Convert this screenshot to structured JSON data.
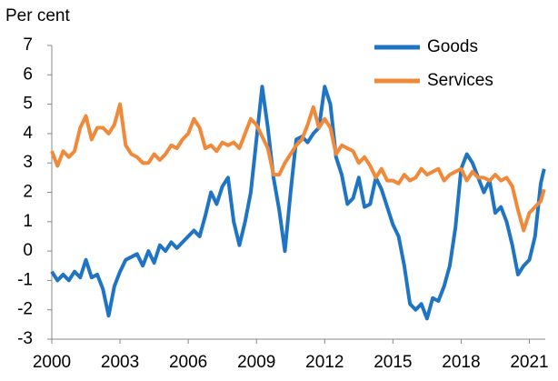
{
  "chart_data": {
    "type": "line",
    "y_label": "Per cent",
    "x": [
      2000.0,
      2000.25,
      2000.5,
      2000.75,
      2001.0,
      2001.25,
      2001.5,
      2001.75,
      2002.0,
      2002.25,
      2002.5,
      2002.75,
      2003.0,
      2003.25,
      2003.5,
      2003.75,
      2004.0,
      2004.25,
      2004.5,
      2004.75,
      2005.0,
      2005.25,
      2005.5,
      2005.75,
      2006.0,
      2006.25,
      2006.5,
      2006.75,
      2007.0,
      2007.25,
      2007.5,
      2007.75,
      2008.0,
      2008.25,
      2008.5,
      2008.75,
      2009.0,
      2009.25,
      2009.5,
      2009.75,
      2010.0,
      2010.25,
      2010.5,
      2010.75,
      2011.0,
      2011.25,
      2011.5,
      2011.75,
      2012.0,
      2012.25,
      2012.5,
      2012.75,
      2013.0,
      2013.25,
      2013.5,
      2013.75,
      2014.0,
      2014.25,
      2014.5,
      2014.75,
      2015.0,
      2015.25,
      2015.5,
      2015.75,
      2016.0,
      2016.25,
      2016.5,
      2016.75,
      2017.0,
      2017.25,
      2017.5,
      2017.75,
      2018.0,
      2018.25,
      2018.5,
      2018.75,
      2019.0,
      2019.25,
      2019.5,
      2019.75,
      2020.0,
      2020.25,
      2020.5,
      2020.75,
      2021.0,
      2021.25,
      2021.5,
      2021.65
    ],
    "series": [
      {
        "name": "Goods",
        "color": "#1f74c4",
        "values": [
          -0.7,
          -1.0,
          -0.8,
          -1.0,
          -0.7,
          -0.9,
          -0.3,
          -0.9,
          -0.8,
          -1.3,
          -2.2,
          -1.2,
          -0.7,
          -0.3,
          -0.2,
          -0.1,
          -0.5,
          0.0,
          -0.4,
          0.2,
          0.0,
          0.3,
          0.1,
          0.3,
          0.5,
          0.7,
          0.5,
          1.2,
          2.0,
          1.6,
          2.2,
          2.5,
          1.0,
          0.2,
          1.0,
          2.0,
          3.8,
          5.6,
          4.2,
          2.5,
          1.4,
          0.0,
          2.0,
          3.8,
          3.9,
          3.7,
          4.0,
          4.2,
          5.6,
          5.0,
          3.2,
          2.6,
          1.6,
          1.8,
          2.5,
          1.5,
          1.6,
          2.5,
          2.1,
          1.5,
          0.9,
          0.5,
          -0.5,
          -1.8,
          -2.0,
          -1.8,
          -2.3,
          -1.6,
          -1.7,
          -1.2,
          -0.5,
          0.8,
          2.8,
          3.3,
          3.0,
          2.5,
          2.0,
          2.4,
          1.3,
          1.5,
          1.0,
          0.2,
          -0.8,
          -0.5,
          -0.3,
          0.5,
          2.3,
          2.8
        ]
      },
      {
        "name": "Services",
        "color": "#f0893a",
        "values": [
          3.4,
          2.9,
          3.4,
          3.2,
          3.4,
          4.2,
          4.6,
          3.8,
          4.2,
          4.2,
          4.0,
          4.3,
          5.0,
          3.6,
          3.3,
          3.2,
          3.0,
          3.0,
          3.3,
          3.1,
          3.3,
          3.6,
          3.5,
          3.8,
          4.0,
          4.5,
          4.2,
          3.5,
          3.6,
          3.4,
          3.7,
          3.6,
          3.7,
          3.5,
          4.0,
          4.5,
          4.3,
          3.9,
          3.5,
          2.6,
          2.6,
          3.0,
          3.3,
          3.6,
          3.8,
          4.3,
          4.9,
          4.2,
          4.5,
          4.2,
          3.3,
          3.6,
          3.5,
          3.4,
          3.0,
          3.2,
          2.9,
          2.5,
          2.8,
          2.4,
          2.4,
          2.3,
          2.6,
          2.4,
          2.5,
          2.8,
          2.6,
          2.7,
          2.8,
          2.4,
          2.6,
          2.7,
          2.8,
          2.4,
          2.7,
          2.5,
          2.5,
          2.4,
          2.6,
          2.4,
          2.5,
          2.2,
          1.4,
          0.7,
          1.3,
          1.5,
          1.7,
          2.1
        ]
      }
    ],
    "xlim": [
      2000,
      2021.7
    ],
    "xticks": [
      2000,
      2003,
      2006,
      2009,
      2012,
      2015,
      2018,
      2021
    ],
    "ylim": [
      -3,
      7
    ],
    "yticks": [
      -3,
      -2,
      -1,
      0,
      1,
      2,
      3,
      4,
      5,
      6,
      7
    ],
    "legend": "upper right"
  }
}
